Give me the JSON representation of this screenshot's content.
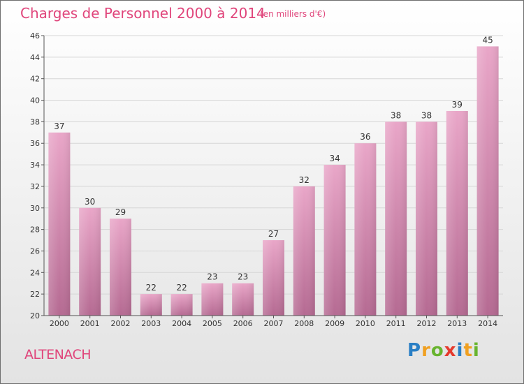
{
  "title": "Charges de Personnel 2000 à 2014",
  "subtitle": "(en milliers d'€)",
  "town": "ALTENACH",
  "logo": {
    "text": "Proxiti",
    "letters": [
      "P",
      "r",
      "o",
      "x",
      "i",
      "t",
      "i"
    ],
    "colors": [
      "#2a7fc5",
      "#f0a021",
      "#68b42f",
      "#e53a2d",
      "#2a7fc5",
      "#f0a021",
      "#68b42f"
    ]
  },
  "colors": {
    "accent": "#e0457b",
    "bar_top": "#e9a6c8",
    "bar_bottom": "#b56a92"
  },
  "chart_data": {
    "type": "bar",
    "categories": [
      "2000",
      "2001",
      "2002",
      "2003",
      "2004",
      "2005",
      "2006",
      "2007",
      "2008",
      "2009",
      "2010",
      "2011",
      "2012",
      "2013",
      "2014"
    ],
    "values": [
      37,
      30,
      29,
      22,
      22,
      23,
      23,
      27,
      32,
      34,
      36,
      38,
      38,
      39,
      45
    ],
    "ylim": [
      20,
      46
    ],
    "yticks": [
      20,
      22,
      24,
      26,
      28,
      30,
      32,
      34,
      36,
      38,
      40,
      42,
      44,
      46
    ],
    "grid": true,
    "data_labels": true
  }
}
